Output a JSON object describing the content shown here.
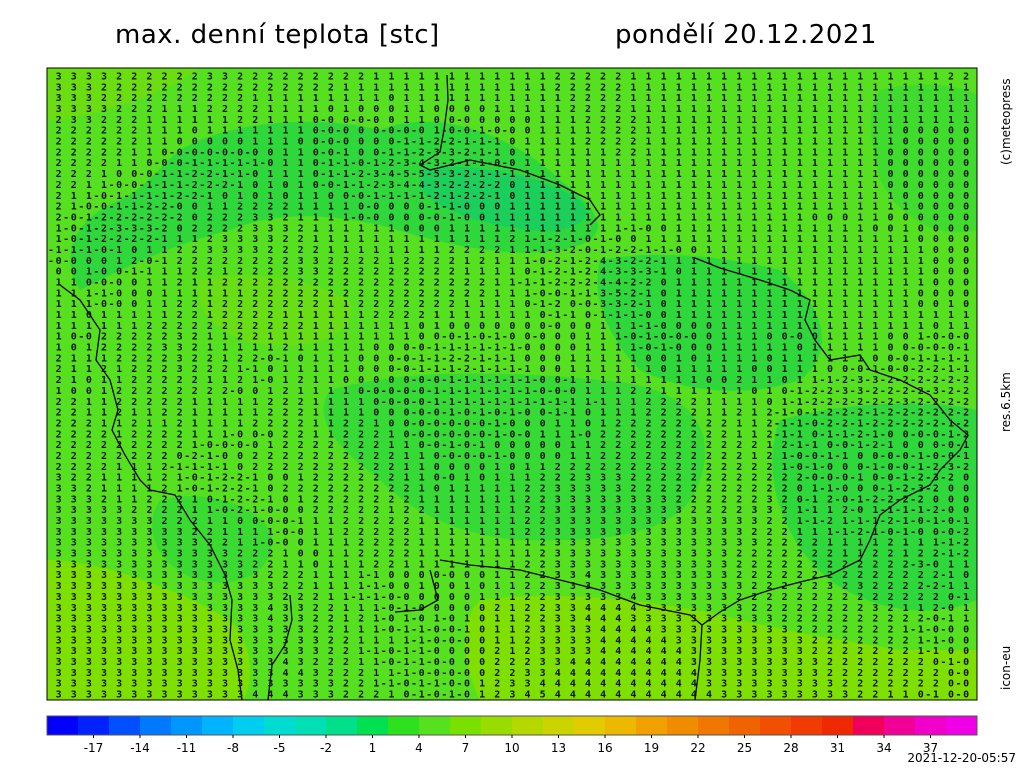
{
  "header": {
    "title": "max. denní teplota [stc]",
    "date": "pondělí 20.12.2021"
  },
  "side_labels": {
    "copyright": "(c)meteopress",
    "resolution": "res.6.5km",
    "model": "icon-eu"
  },
  "map": {
    "grid_rows": [
      " 3 3 3 3 2 2 2 2 2 2 3 3 2 2 2 2 2 2 2 2 2 1 1 1 1 1 1 1 1 1 1 1 1 2 2 2 2 2 1 1 1 1 1 1 1 1 1 1 1 1 1 1 1 1 1 1 1 1 1 2 2",
      " 3 3 3 2 2 2 2 2 2 2 2 2 2 2 2 2 2 2 2 1 1 1 1 1 1 1 1 1 1 1 1 1 1 2 2 2 2 2 1 1 1 1 1 1 1 1 1 1 1 1 1 1 1 1 1 1 1 1 1 1 1",
      " 3 3 3 2 2 2 2 2 2 2 2 2 2 1 1 1 1 1 1 1 1 1 0 1 1 1 1 1 1 1 1 1 1 1 2 2 2 2 1 1 1 1 1 1 1 1 1 1 1 1 1 1 1 1 1 1 1 1 1 1 1",
      " 3 3 3 3 2 2 2 1 1 1 2 2 2 2 1 1 1 1 0 1 0 0 0 1 1 0 0 0 0 1 1 1 1 1 2 2 2 2 1 1 1 1 1 1 1 1 1 1 1 1 1 1 1 1 1 1 1 1 1 1 1",
      " 2 3 3 2 2 2 1 1 1 1 1 1 2 2 1 1 1 0-0 0-0-0 0 1 1 0 0-0 0 0 0 0 1 1 1 2 2 2 2 1 1 1 1 1 1 1 1 1 1 1 1 1 1 1 1 1 1 1 1 1 1",
      " 2 2 2 2 2 2 1 1 1 0 1 1 1 1 1 1 1 0-0-0 0 0-0-0-0 1-0-0-1-0-0 0 1 1 1 1 2 2 2 1 1 1 1 1 1 1 1 1 1 1 1 1 1 1 1 1 0 0 0 0 0",
      " 2 2 2 2 2 2 1 1 0 0 0 0 0 1 1 1 0 0-0-0 0 0 0-1-1-2-2-1-1-1 0 1 1 1 1 2 2 2 2 1 1 1 1 1 1 1 1 1 1 1 1 1 1 1 1 1 0 0 0 0 0",
      " 2 2 2 2 2 1 1 0-0-0-0-0-0-0 0 1 1 0-0-1 0 0-1-1-2-3-3-2-1-1 0 1 1 1 1 1 1 2 2 1 1 1 1 1 1 1 1 1 1 1 1 1 1 1 1 0 0 0 0 0 0",
      " 2 2 2 2 1 1 0-0-0-1-1-1-1-1-0 1 1 0-1-1-0-1-2-3-4-3-2-1-1-0-0 1 1 1 1 1 1 1 1 1 1 1 1 1 1 1 1 1 1 1 1 1 1 1 1 0 0 0 0 0 0",
      " 2 2 2 1 0 0-0-1-1-2-2-1-1-0 1 1 1 0-1-1-2-3-4-5-5-5-3-2-1-1-1 1 1 1 1 1 1 1 1 1 1 1 1 1 1 1 1 1 1 1 1 1 1 1 1 0 0 0 0 0 0",
      " 2 2 1 1-0-0-1-1-1-2-2-2-1 0 1 0 1 0-0-1-1-2-3-4-4-3-2-2-2-2 0 1 1 1 1 1 1 1 1 1 1 1 1 1 1 1 1 1 1 1 1 1 1 1 1 0 0 0 0 0 0",
      " 2 1 1-0-1-1-1-1-2-2-1 0 1 0 1 0 1 1 0 0-0-1-1-1-1-2-1-2-2-1 0 1 1 1 1 1 1 1 1 1 1 1 1 1 1 1 1 1 1 1 1 1 1 1 1 1 0 0 0 0 0",
      " 2 1-0-0-1-1-2-2-0 0 1 1 2 2 2 2 1 1 1 1 0-0 0 0 0-1-1-0 0 0 1 1 1 1 1 1 1 1 1 1 1 1 1 1 1 1 1 1 1 1 1 1 1 1 1 1 1 0 0 0 0",
      " 2-0-1-2-2-2-2-2-2 0 2 2 2 3 3 2 1 1 1 1-0-0 0 0 0-0-1-0 0 1 1 1 1 1 1 1 1 1 1 1 1 1 1 1 1 1 1 1 1 1 0 0 0 1 1 0 0 0 0 0 0",
      " 1-0-1-2-3-3-3-2 0 2 2 2 2 3 3 3 2 1 1 1 1 1 1 0 0 0 1 1 1 1 1 1 1 1 1 1 1 1-1-0 0 1 1 1 1 1 1 1 1 1 1 1 1 1 0 0 1 0 0 0 0",
      " 1-0-1-2-2-2-2-1 1 1 2 3 3 3 3 2 2 1 1 1 1 1 1 1 1 1 1 1 1 1 2 1-1-2-1-0-1-0 0 1 1 1 1 1 1 1 1 1 1 1 1 1 1 1 1 1 1 0 0 0 0",
      "-1-1-1-0-1 0 1 1 2 2 3 3 3 3 2 2 2 2 1 1 1 1 1 1 1 1 2 2 2 2 1 1-1-3-2-0-1-2-2-1-1-0 0 1 1 1 1 1 1 1 1 1 1 1 1 1 1 1 0 0 0",
      "-0-0 0 0 1 2-0-1 2 2 2 2 2 2 2 2 3 3 2 2 2 2 1 2 2 2 2 1 2 1 1 1-0-2-1-2-4-3-2-2-1 1 1 1 1 1 1 1 1 1 1 1 1 1 1 1 1 1 0 0 0",
      " 0 0 1-0 0-1-1 1 1 2 2 1 2 2 2 2 3 3 2 2 2 2 2 2 2 2 2 1 1 1 1 0-1-2-1-2-4-3-3-3-1 0 1 1 1 1 1 1 1 1 1 1 1 1 1 1 1 1 0 0 0",
      " 1 1 0-0-0 0 1 1 2 1 1 2 2 2 2 2 2 2 2 2 2 2 2 2 2 2 2 2 2 1 1-1-1-2-2-2-4-4-2-2 0 1 1 1 1 1 1 1 1 1 1 1 1 1 1 1 1 1 0 0 0",
      " 1 1 1-1-0 0 0 1 1 1 1 1 1 2 2 2 2 2 2 2 2 2 2 2 2 2 2 2 2 1 1 1-0-0-1-1-3-5-2-1 0 1 1 1 1 1 1 1 1 1 1 1 1 1 1 1 1 0 0 0 0",
      " 1 1 1-0-0 0 1 1 2 2 1 2 2 2 2 2 2 2 1 1 2 2 2 2 2 2 2 1 1 1 1 0-1-2 0-0-3-3-2-1 0 1 1 1 1 1 1 1 1 1 1 1 1 1 1 1 1 0 0 1 0",
      " 1 1 0 1 1 1 1 1 2 2 1 2 2 2 2 1 1 1 1 1 1 2 2 2 2 1 1 1 1 1 1 1 0-1-1 0-1-1-1-0 0 1 1 1 1 1 1 1 1 1 1 1 1 1 1 1 1 1 1 1 1",
      " 1 1 1 1 1 1 2 2 2 2 2 2 2 2 2 2 2 1 1 1 1 1 1 1 0 1 0 0 0 0 0 0 0-0 0 0 1 1 1-1-0 0 0 0 1 1 1 1 1 1 1 1 1 1 1 1 1 1 0 1 1",
      " 1 0-0 2 2 2 2 2 3 2 1 1 2 2 1 1 1 1 1 1 1 1 1 1 0 0-0-1-0-1-0 0-0 0 0 1 1 1-0-1-0-0-0 0 1 1 1 0 0-0 0 1 1 1 1 0 0 1-0-0-0",
      " 1 0 1 2 2 2 2 3 3 2 1 1 1 1 1 2 1 1 1 1 1 0 0 0-0-1-1-1-1-1-1-0 0 0 0 1 1 1 1-0-1-0 0 0 1 1 1 1 1 0 1 1 1 1 1 0 0-0-0-0-1",
      " 2 1 1 1 2 2 2 2 3 2 2 1 2 2-0-1 0 1 1 1 0 0 0-0-1-1-2-2-1-1-1 0 0 0 1 1 1 1 1 0 0 1 0 1 1 1 1 0 1 1 1 1 1 1 0 0-0-1-1-1-1",
      " 2 1 1 2 1 2 2 2 3 2 2 2 1-1 0 1 1 1 1 1 0 0 0-0-1-1-1-2-1-1-1-1 0 0 1 1 1 1 1 1 0 1 1 1 1 1 0 0 1 1 1 0 0-0-1-0-0-2-2-1-1",
      " 2 1 0 1 1 2 2 2 2 2 1 1 2 1-0 1 2 1 1 0 0 0 0 0-0-0-1-1-1-1-1-1-0 0-1 1 1 1 1 1 1 1 1 0 0 2 1 1 0 1 1-1-2-3-3-2-2-2-2-2-2",
      " 1 0 0 1 2 2 2 2 2 2 2 2-0 0 1 2 1 1 1 1 0-0-0-0-0-1-1-1-1-1-1-1-0-0-0 1 1 1 2 2 1 1 1 1 1 1 0 1 0-1-2-2-3-3-2-2-2-2-3-2-2",
      " 2 2 1 1 2 2 2 2 2 1 1 1 1 1 2 2 2 1 1 1 1 0-0-0-0-1-1-1-1-1-1-1-1-1-1 1-1 1 1 2 2 2 2 1 1 1 1 0 1-1-2-2-2-2-2-2-3-2-2-2-2",
      " 2 2 1 1 2 1 1 2 2 1 1 1 1 1 2 2 2 1 1 1 1 0 0 0-0-0-1-0-1-0-1-0 0-1-1 0 1 1 1 2 2 2 2 1 1 2 1 2-1-0-1-2-2-2-1-2-2-2-2-2-2",
      " 2 2 2 1 1 2 1 1 2 1 1 1 1 2 2 2 2 1 1 2 2 1 0 0-0-0-0-0-0-1-0 0 0 1 1 0 1 2 2 2 2 2 2 2 2 1 1 2-1-1-0-2-2-1-2-2-2-2-2-1-2",
      " 2 2 2 2 1 2 2 2 2 1 1 1-0 0-0 2 2 1 1 2 2 2 1 0-0-0-0-0-0-1-0-0 1 1 1-0 2 2 2 2 2 2 2 2 2 1 1 2-1-1 0-1-1-2-1-0 0-0-0-1-2",
      " 2 2 2 2 2 2 2 2 2 1-0-0-0-0 1 2 2 2 2 2 2 2 1 1 0-0-1-0-1 0 0 0 0 0 1 1 2 2 2 2 2 2 2 2 2 2 2 1 2-1-1 0-0-1-2-1 0 0 0-0-1",
      " 2 2 2 2 2 2 2 2 0-2-1-0 0 2 2 2 2 2 2 2 2 2 2 1 1 0-0-0-0-1-0 0 0 0 1 1 2 2 2 2 2 2 2 2 2 2 1 2 1-0-0-1-1 0 0-0-0-1-0-0-1",
      " 2 2 2 2 1 1 1 2-1-1-1-1 0 2 2 2 2 2 2 2 2 2 2 1 1 0 0 0 0 1 0 1 1 2 2 2 2 2 2 2 2 2 2 2 2 2 2 2 1-0-1-0 0 0-1-0-0-1-2-3-2",
      " 3 2 2 1 1 1 1 2 1-0-1-2-2-1 0 0 1 2 2 2 2 2 2 1 1 0-0 1 0 1 1 1 2 2 2 3 3 3 2 2 2 2 2 2 2 2 2 2 2 2-0-0-0-1 0-0-1-2-3-2 0",
      " 3 3 2 1 1 1 1 2 1-0-1-2-2-1 0 2 2 2 2 2 2 2 2 2 1 0 1 1 1 1 1 2 2 3 3 3 3 3 2 2 2 2 2 2 2 2 2 2 2 0 1-1-0 0 0-1-2-3-2 0 0",
      " 3 3 3 2 1 1 2 2 2 1 0-1-2-2-1 0 1 2 2 2 2 2 2 2 1 1 1 1 1 1 1 2 2 3 3 3 3 3 3 3 3 2 2 2 2 2 2 3 2 0-1 2-0-1-2-2-2-2 0 0 0",
      " 3 3 3 3 3 2 2 2 2 1 1-0-2-1-0-0 0 2 2 2 2 2 1 2 2 1 1 1 1 1 1 2 2 3 3 3 3 3 3 3 3 3 2 2 2 2 3 3 2 1-1 1 2-0 1-1-1-1-2-0 0",
      " 3 3 3 3 3 3 3 2 2 2 1 1 0 0-0-0-1 1 1 2 2 2 2 2 1 1 1 1 1 1 1 2 2 3 3 3 3 3 3 3 3 3 3 3 3 3 3 2 2 1-1-2 1-1-1-2-1-0-1-0-1",
      " 3 3 3 3 3 3 3 3 3 2 2 1 1 1 1-0-0 1 1 2 2 2 2 2 1 1 1 1 1 1 1 2 2 3 3 3 3 3 3 3 3 3 3 3 3 3 2 2 2 1 1 1-1-2-1-0-1-0 0-0-2",
      " 3 3 3 3 3 3 3 3 3 3 2 2 1 1-0-0 0 1 1 1 2 2 2 2 1 1 1 1 1 1 1 1 2 3 3 3 3 3 3 3 3 3 3 3 3 3 3 2 2 2 2 1 1 1 1 2 1 1 1-1-2",
      " 3 3 3 3 3 3 3 3 3 3 3 3 2 2 2 1 0 0 1 1 2 2 2 2 1 1 1 1 1 1 1 1 2 3 3 3 3 3 3 3 3 3 3 3 3 2 2 2 2 2 2 2 1 1 2 2 1 2 2-1-2",
      " 3 3 3 3 3 3 3 3 3 3 3 3 3 2 2 1 1 0 1 1 1 2 2 1 1 1 1 1 1 1 1 2 2 3 3 3 3 3 3 3 3 3 3 3 3 2 2 2 2 2 2 2 2 2 2 2 2-3-0 1 1",
      " 3 3 3 3 3 3 3 3 3 3 3 3 3 3 2 2 2 1 1 1 1-1 0 0 0 0-0 0 0 1 1 2 2 3 3 4 3 3 3 3 3 3 3 3 3 2 2 2 2 2 2 2 2 2 2 2 2 2 2-1 0",
      " 3 3 3 3 3 3 3 3 3 3 3 3 3 3 3 2 2 1 1 1 1-1-0 0 1 0 0 1 0 1 1 2 2 3 3 3 3 3 3 3 3 3 3 3 3 3 2 2 2 2 2 3 2 3 2 2 2 2-2-1 1",
      " 3 3 3 3 3 3 3 3 3 3 3 3 3 3 3 2 2 2 1 1-1-1-0-0 0 0 0 0 1 1 1 2 2 3 3 3 3 3 4 3 3 3 3 3 3 2 2 2 2 2 2 2 2 2 2 2 2 2 2 0-1",
      " 3 3 3 3 3 3 3 3 3 3 3 3 3 3 4 3 3 2 2 1 1 1-0-1-0 0 0 0 0 2 1 2 2 3 3 4 4 4 4 3 3 3 3 3 3 3 2 2 2 2 2 2 2 2 3 2 1 1 2-0 1",
      " 3 3 3 3 3 3 3 3 3 3 3 3 3 3 4 3 3 2 2 1 2 1-0 1-0 1-0 1 0 1 1 2 2 3 3 4 4 4 3 3 3 3 3 3 3 3 3 3 2 2 2 2 2 2 2 2 2 2-0-1 1",
      " 3 3 3 3 3 3 3 3 3 3 3 3 3 3 3 3 3 2 2 1 1 1-0-1-1-0-0-1 0 1 1 2 3 3 3 3 4 4 4 4 3 3 3 3 3 3 3 3 3 2 2 2 2 2 2 2 1-1-0-0 0",
      " 3 3 3 3 3 3 3 3 3 3 3 3 3 3 3 3 3 3 2 2 1 1 1 1-1-0-0-0 0 1 1 2 3 3 3 3 4 4 4 4 4 3 3 3 3 3 3 3 3 3 2 2 2 2 2 2 2 1-1-0 0",
      " 3 3 3 3 3 3 3 3 3 3 3 3 3 3 3 3 3 3 2 2 1-1-0-1-1-0 0 0 0 2 1 2 3 3 3 3 4 4 4 4 4 4 3 3 3 3 3 3 3 3 2 2 2 2 2 2 2 1-1 0 0",
      " 3 3 3 3 3 3 3 3 3 3 3 3 3 3 3 4 3 2 2 2 1 1-0-1-1-0-0 0 0 2 2 2 3 3 4 4 4 4 4 4 4 4 3 3 3 3 3 3 3 3 3 2 2 2 2 2 2 2 0-1-0",
      " 3 3 3 3 3 3 3 3 3 3 3 3 3 3 3 4 4 3 2 2 2 1 1-1-0-0-0-0 0 2 2 3 3 4 4 4 4 4 4 4 4 4 4 3 3 3 3 3 3 3 3 2 2 2 2 2 2 2 2 0-0",
      " 3 3 3 3 3 3 3 3 3 3 3 3 3 3 3 3 3 3 3 2 2 1-1-0-1-1-0-0 1 2 3 3 4 4 4 4 4 4 4 4 4 4 4 3 3 3 3 3 3 3 3 3 2 2 2 2 2 2 2 0-0",
      " 3 3 3 3 3 3 3 3 3 3 3 3 3 4 4 4 3 3 3 2 2 2 1 0-1-0-1-0 1 2 3 4 5 4 4 4 4 4 4 4 4 4 4 4 3 3 3 3 3 3 3 3 3 2 2 1 1 0-1 0-0"
    ]
  },
  "colorbar": {
    "lim": [
      -20,
      40
    ],
    "ticks": [
      -17,
      -14,
      -11,
      -8,
      -5,
      -2,
      1,
      4,
      7,
      10,
      13,
      16,
      19,
      22,
      25,
      28,
      31,
      34,
      37
    ],
    "colors": [
      "#0000ff",
      "#0022ff",
      "#0050ff",
      "#0078ff",
      "#0096ff",
      "#00b4ff",
      "#00cdf0",
      "#00dcd2",
      "#00e0b4",
      "#00e08c",
      "#00e050",
      "#2ee01e",
      "#55e11f",
      "#7ae000",
      "#98dc00",
      "#b4d800",
      "#ccd400",
      "#e0cc00",
      "#ecb800",
      "#f0a000",
      "#f08c00",
      "#f07800",
      "#f06400",
      "#f05000",
      "#f03c00",
      "#f02800",
      "#f0005a",
      "#f00096",
      "#f000c8",
      "#f000e6"
    ]
  },
  "timestamp": "2021-12-20-05:57"
}
